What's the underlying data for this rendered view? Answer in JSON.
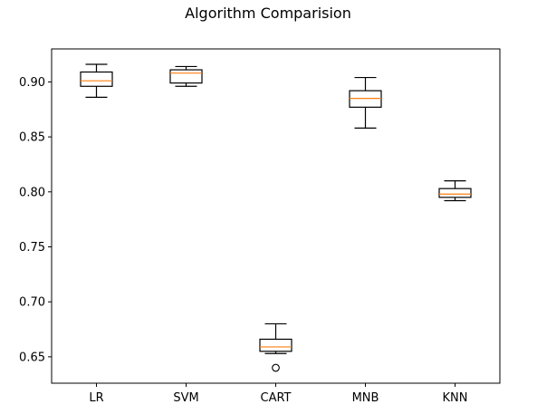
{
  "chart_data": {
    "type": "boxplot",
    "title": "Algorithm Comparision",
    "xlabel": "",
    "ylabel": "",
    "categories": [
      "LR",
      "SVM",
      "CART",
      "MNB",
      "KNN"
    ],
    "ylim": [
      0.626,
      0.93
    ],
    "yticks": [
      0.65,
      0.7,
      0.75,
      0.8,
      0.85,
      0.9
    ],
    "ytick_labels": [
      "0.65",
      "0.70",
      "0.75",
      "0.80",
      "0.85",
      "0.90"
    ],
    "grid": false,
    "box_color": "#000000",
    "median_color": "#ff7f0e",
    "boxes": [
      {
        "whisker_low": 0.886,
        "q1": 0.896,
        "median": 0.901,
        "q3": 0.909,
        "whisker_high": 0.916,
        "outliers": []
      },
      {
        "whisker_low": 0.896,
        "q1": 0.899,
        "median": 0.908,
        "q3": 0.911,
        "whisker_high": 0.914,
        "outliers": []
      },
      {
        "whisker_low": 0.653,
        "q1": 0.655,
        "median": 0.659,
        "q3": 0.666,
        "whisker_high": 0.68,
        "outliers": [
          0.64
        ]
      },
      {
        "whisker_low": 0.858,
        "q1": 0.877,
        "median": 0.885,
        "q3": 0.892,
        "whisker_high": 0.904,
        "outliers": []
      },
      {
        "whisker_low": 0.792,
        "q1": 0.795,
        "median": 0.798,
        "q3": 0.803,
        "whisker_high": 0.81,
        "outliers": []
      }
    ]
  }
}
